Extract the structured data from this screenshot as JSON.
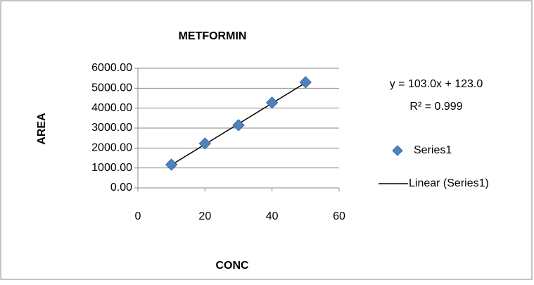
{
  "chart_data": {
    "type": "scatter",
    "title": "METFORMIN",
    "x_label": "CONC",
    "y_label": "AREA",
    "series": [
      {
        "name": "Series1",
        "color": "#4f81bd",
        "x": [
          10,
          20,
          30,
          40,
          50
        ],
        "values": [
          1166,
          2226,
          3145,
          4276,
          5300
        ]
      }
    ],
    "trendline": {
      "name": "Linear (Series1)",
      "color": "#000000",
      "slope": 103.0,
      "intercept": 123.0,
      "equation": "y = 103.0x + 123.0",
      "r_squared": "R² = 0.999"
    },
    "xlim": [
      0,
      60
    ],
    "xticks": [
      0,
      20,
      40,
      60
    ],
    "ylim": [
      0,
      6000
    ],
    "yticks": [
      {
        "value": 0,
        "label": "0.00"
      },
      {
        "value": 1000,
        "label": "1000.00"
      },
      {
        "value": 2000,
        "label": "2000.00"
      },
      {
        "value": 3000,
        "label": "3000.00"
      },
      {
        "value": 4000,
        "label": "4000.00"
      },
      {
        "value": 5000,
        "label": "5000.00"
      },
      {
        "value": 6000,
        "label": "6000.00"
      }
    ],
    "grid": true,
    "legend": "right"
  }
}
